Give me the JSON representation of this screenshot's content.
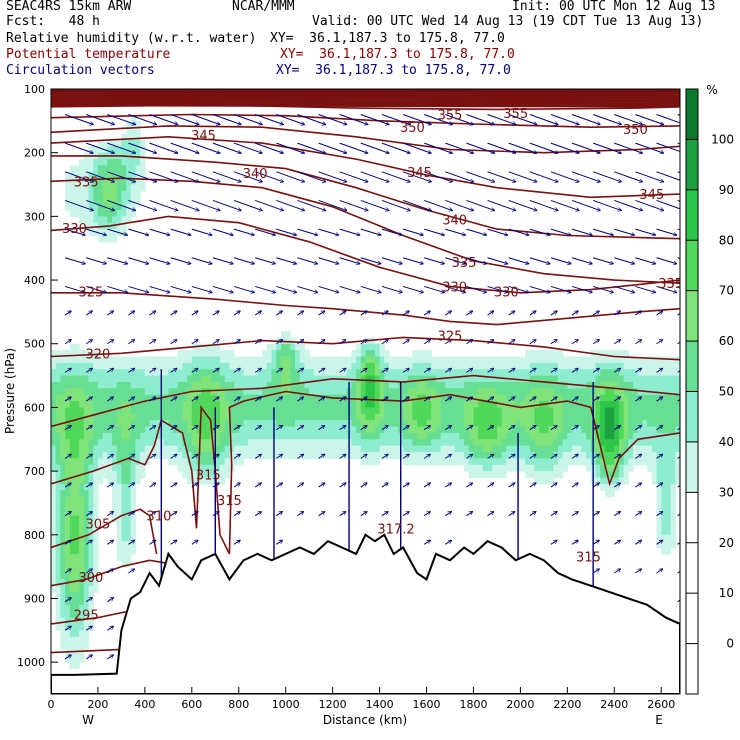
{
  "header": {
    "model": "SEAC4RS 15km ARW",
    "forecast": "Fcst:   48 h",
    "center": "NCAR/MMM",
    "init": "Init: 00 UTC Mon 12 Aug 13",
    "valid": "Valid: 00 UTC Wed 14 Aug 13 (19 CDT Tue 13 Aug 13)",
    "fields": [
      {
        "name": "Relative humidity (w.r.t. water)",
        "xy": "XY=  36.1,187.3 to 175.8, 77.0",
        "color": "#000000"
      },
      {
        "name": "Potential temperature",
        "xy": "XY=  36.1,187.3 to 175.8, 77.0",
        "color": "#8b0000"
      },
      {
        "name": "Circulation vectors",
        "xy": "XY=  36.1,187.3 to 175.8, 77.0",
        "color": "#00007f"
      }
    ]
  },
  "chart_data": {
    "type": "heatmap",
    "title": "Cross section: relative humidity (shaded), potential temperature (contours), circulation vectors",
    "xlabel": "Distance (km)",
    "ylabel": "Pressure (hPa)",
    "x_ticks": [
      0,
      200,
      400,
      600,
      800,
      1000,
      1200,
      1400,
      1600,
      1800,
      2000,
      2200,
      2400,
      2600
    ],
    "xlim": [
      0,
      2680
    ],
    "y_ticks": [
      100,
      200,
      300,
      400,
      500,
      600,
      700,
      800,
      900,
      1000
    ],
    "ylim": [
      100,
      1050
    ],
    "x_endpoints": {
      "left": "W",
      "right": "E"
    },
    "colorbar": {
      "unit": "%",
      "ticks": [
        0,
        10,
        20,
        30,
        40,
        50,
        60,
        70,
        80,
        90,
        100
      ],
      "levels": [
        {
          "from": -10,
          "to": 30,
          "color": "#ffffff"
        },
        {
          "from": 30,
          "to": 40,
          "color": "#ccf5ea"
        },
        {
          "from": 40,
          "to": 50,
          "color": "#8eeccf"
        },
        {
          "from": 50,
          "to": 60,
          "color": "#66df94"
        },
        {
          "from": 60,
          "to": 70,
          "color": "#80e47a"
        },
        {
          "from": 70,
          "to": 80,
          "color": "#4fd85a"
        },
        {
          "from": 80,
          "to": 90,
          "color": "#2cc64a"
        },
        {
          "from": 90,
          "to": 100,
          "color": "#1fa040"
        },
        {
          "from": 100,
          "to": 110,
          "color": "#0e7a2e"
        }
      ]
    },
    "theta_contour_labels": [
      {
        "label": "360",
        "x": 2590,
        "p": 118
      },
      {
        "label": "355",
        "x": 1700,
        "p": 140
      },
      {
        "label": "355",
        "x": 1980,
        "p": 138
      },
      {
        "label": "350",
        "x": 1540,
        "p": 160
      },
      {
        "label": "350",
        "x": 2490,
        "p": 163
      },
      {
        "label": "345",
        "x": 650,
        "p": 172
      },
      {
        "label": "345",
        "x": 1570,
        "p": 230
      },
      {
        "label": "345",
        "x": 2560,
        "p": 265
      },
      {
        "label": "340",
        "x": 870,
        "p": 232
      },
      {
        "label": "340",
        "x": 1720,
        "p": 305
      },
      {
        "label": "335",
        "x": 150,
        "p": 245
      },
      {
        "label": "335",
        "x": 1760,
        "p": 372
      },
      {
        "label": "335",
        "x": 2640,
        "p": 405
      },
      {
        "label": "330",
        "x": 100,
        "p": 318
      },
      {
        "label": "330",
        "x": 1720,
        "p": 410
      },
      {
        "label": "330",
        "x": 1940,
        "p": 418
      },
      {
        "label": "325",
        "x": 170,
        "p": 418
      },
      {
        "label": "325",
        "x": 1700,
        "p": 487
      },
      {
        "label": "320",
        "x": 200,
        "p": 515
      },
      {
        "label": "315",
        "x": 670,
        "p": 705
      },
      {
        "label": "315",
        "x": 760,
        "p": 745
      },
      {
        "label": "310",
        "x": 460,
        "p": 770
      },
      {
        "label": "305",
        "x": 200,
        "p": 782
      },
      {
        "label": "317.2",
        "x": 1470,
        "p": 790
      },
      {
        "label": "315",
        "x": 2290,
        "p": 834
      },
      {
        "label": "300",
        "x": 170,
        "p": 866
      },
      {
        "label": "295",
        "x": 150,
        "p": 925
      }
    ]
  }
}
